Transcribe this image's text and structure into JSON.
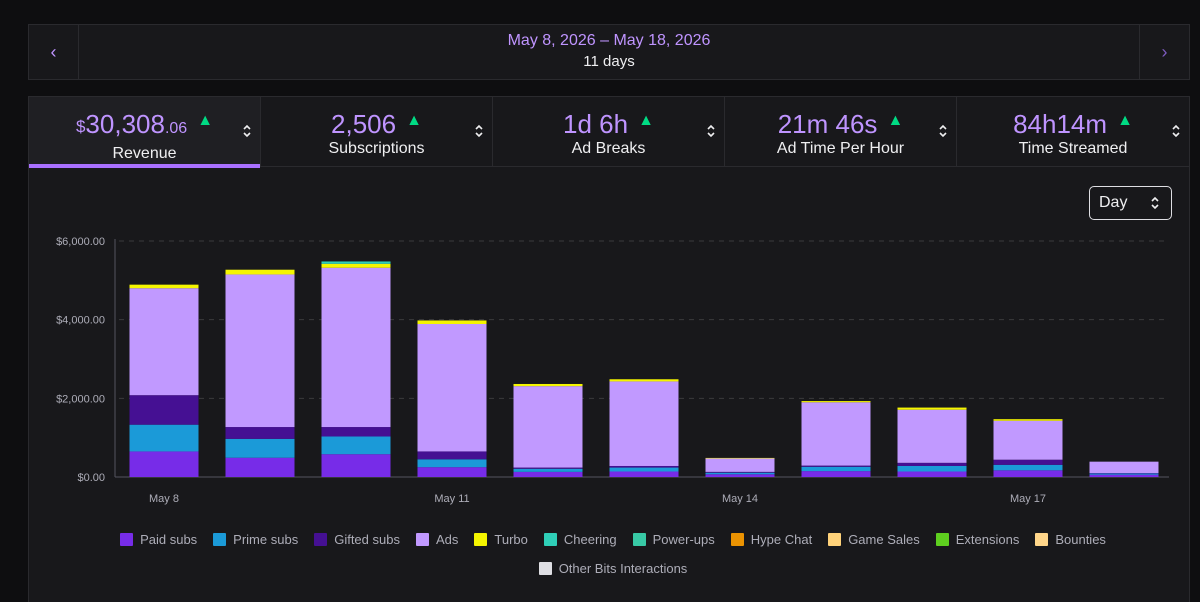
{
  "date_bar": {
    "prev_label": "‹",
    "next_label": "›",
    "range": "May 8, 2026 – May 18, 2026",
    "days": "11 days"
  },
  "tabs": [
    {
      "currency": "$",
      "main": "30,308",
      "cents": ".06",
      "label": "Revenue",
      "active": true
    },
    {
      "currency": "",
      "main": "2,506",
      "cents": "",
      "label": "Subscriptions",
      "active": false
    },
    {
      "currency": "",
      "main": "1d 6h",
      "cents": "",
      "label": "Ad Breaks",
      "active": false
    },
    {
      "currency": "",
      "main": "21m 46s",
      "cents": "",
      "label": "Ad Time Per Hour",
      "active": false
    },
    {
      "currency": "",
      "main": "84h14m",
      "cents": "",
      "label": "Time Streamed",
      "active": false
    }
  ],
  "trend_icon": "arrow-up-icon",
  "granularity": {
    "selected": "Day"
  },
  "colors": {
    "accent": "#bf94ff",
    "active_tab_underline": "#a970ff",
    "trend_up": "#00db84"
  },
  "chart_data": {
    "type": "bar",
    "stacked": true,
    "categories": [
      "May 8",
      "May 9",
      "May 10",
      "May 11",
      "May 12",
      "May 13",
      "May 14",
      "May 15",
      "May 16",
      "May 17",
      "May 18"
    ],
    "x_tick_labels": [
      "May 8",
      "May 11",
      "May 14",
      "May 17"
    ],
    "y_tick_labels": [
      "$0.00",
      "$2,000.00",
      "$4,000.00",
      "$6,000.00"
    ],
    "ylim": [
      0,
      6000
    ],
    "grid": true,
    "legend_position": "bottom",
    "series": [
      {
        "name": "Paid subs",
        "color": "#772ce8",
        "values": [
          650,
          490,
          580,
          250,
          130,
          140,
          70,
          150,
          140,
          170,
          60
        ]
      },
      {
        "name": "Prime subs",
        "color": "#1b9ad8",
        "values": [
          680,
          480,
          450,
          200,
          80,
          100,
          40,
          110,
          140,
          140,
          30
        ]
      },
      {
        "name": "Gifted subs",
        "color": "#451093",
        "values": [
          750,
          300,
          240,
          200,
          30,
          40,
          20,
          30,
          80,
          130,
          10
        ]
      },
      {
        "name": "Ads",
        "color": "#c199ff",
        "values": [
          2720,
          3880,
          4050,
          3240,
          2070,
          2150,
          350,
          1610,
          1350,
          990,
          290
        ]
      },
      {
        "name": "Turbo",
        "color": "#f5f500",
        "values": [
          90,
          120,
          100,
          90,
          55,
          55,
          5,
          30,
          55,
          40,
          0
        ]
      },
      {
        "name": "Cheering",
        "color": "#2fcfb8",
        "values": [
          0,
          0,
          60,
          0,
          0,
          0,
          0,
          0,
          0,
          0,
          0
        ]
      },
      {
        "name": "Power-ups",
        "color": "#38c9a6",
        "values": [
          0,
          0,
          0,
          0,
          0,
          0,
          0,
          0,
          0,
          0,
          0
        ]
      },
      {
        "name": "Hype Chat",
        "color": "#eb9302",
        "values": [
          0,
          0,
          0,
          0,
          0,
          0,
          0,
          0,
          0,
          0,
          0
        ]
      },
      {
        "name": "Game Sales",
        "color": "#ffd27a",
        "values": [
          0,
          0,
          0,
          0,
          0,
          0,
          0,
          0,
          0,
          0,
          0
        ]
      },
      {
        "name": "Extensions",
        "color": "#5ecf1f",
        "values": [
          0,
          0,
          0,
          0,
          0,
          0,
          0,
          0,
          0,
          0,
          0
        ]
      },
      {
        "name": "Bounties",
        "color": "#ffd68a",
        "values": [
          0,
          0,
          0,
          0,
          0,
          0,
          0,
          0,
          0,
          0,
          0
        ]
      },
      {
        "name": "Other Bits Interactions",
        "color": "#dedee3",
        "values": [
          0,
          0,
          0,
          0,
          0,
          0,
          0,
          0,
          0,
          0,
          0
        ]
      }
    ]
  }
}
